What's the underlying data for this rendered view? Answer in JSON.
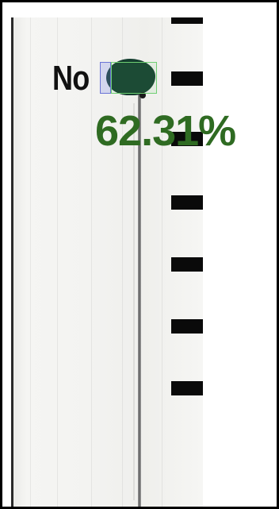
{
  "scan": {
    "word": "No"
  },
  "detection": {
    "confidence_label": "62.31%",
    "confidence_value": 0.6231,
    "label_color": "#2f6b22",
    "mark_color": "#143d2e",
    "box_colors": {
      "option_box": "#6b74d6",
      "mark_box": "#6fcf73"
    }
  },
  "scale": {
    "tick_count": 8
  }
}
